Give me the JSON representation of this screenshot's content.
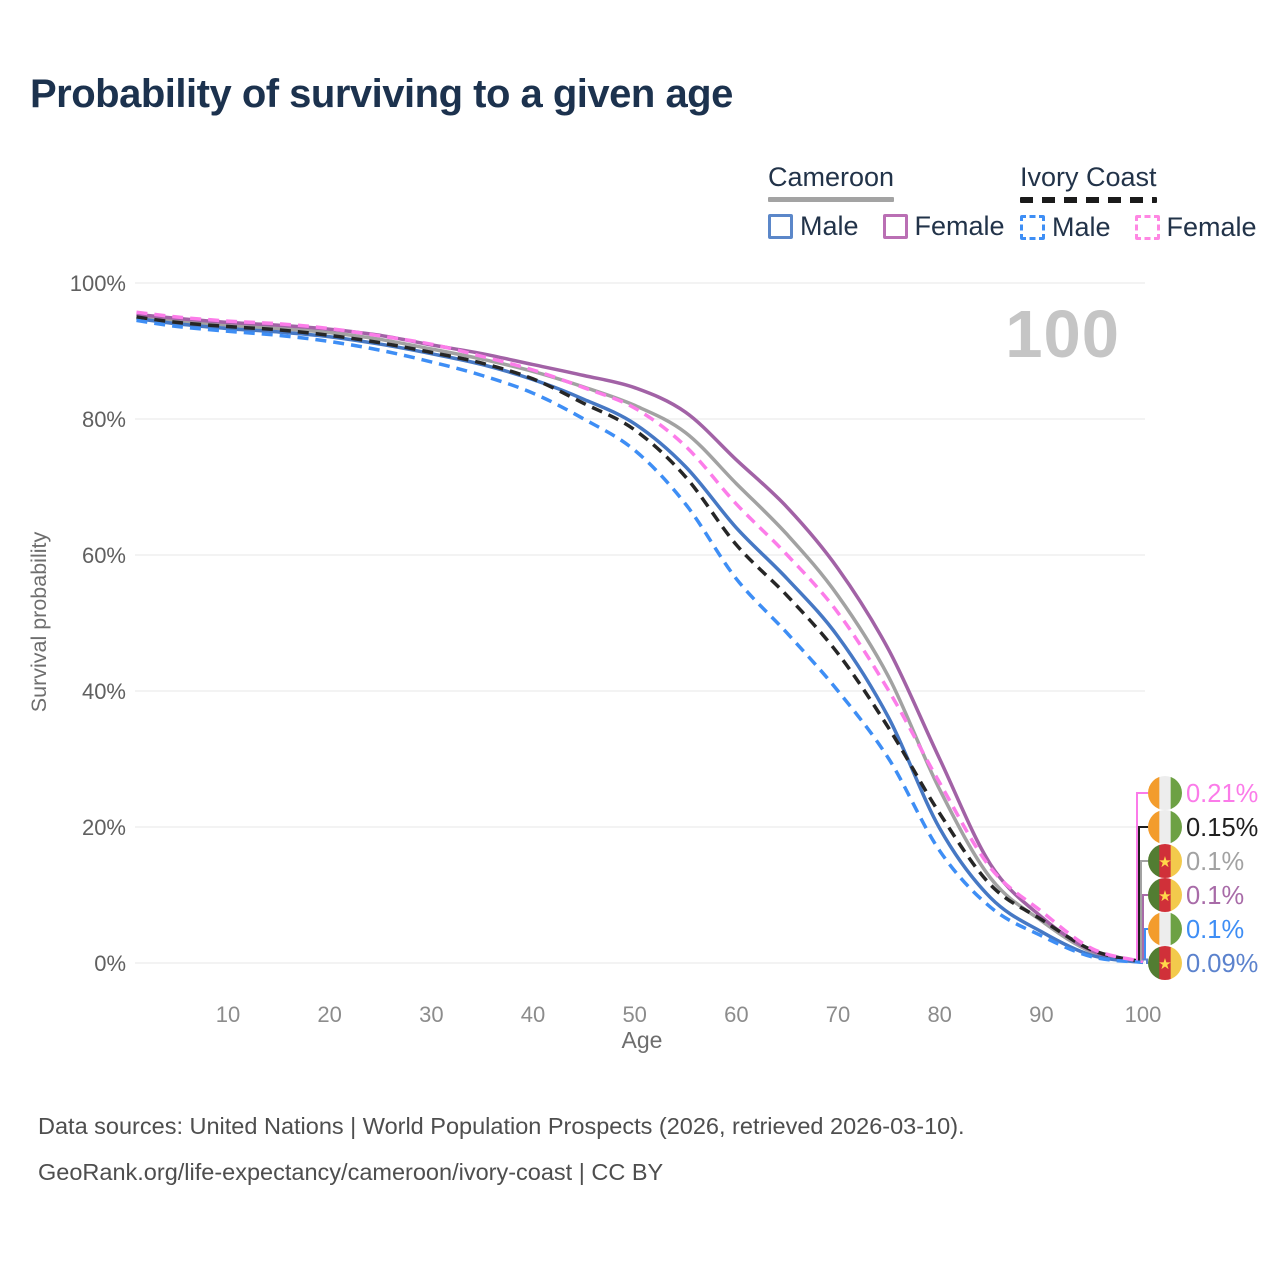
{
  "title": {
    "text": "Probability of surviving to a given age",
    "color": "#1c324e"
  },
  "legend": {
    "groups": [
      {
        "id": "cameroon",
        "label": "Cameroon",
        "line_style": "solid",
        "line_color": "#a3a3a3",
        "items": [
          {
            "id": "cameroon-male",
            "label": "Male",
            "box_color": "#5b87c9",
            "box_style": "solid"
          },
          {
            "id": "cameroon-female",
            "label": "Female",
            "box_color": "#ba6fb4",
            "box_style": "solid"
          }
        ]
      },
      {
        "id": "ivory-coast",
        "label": "Ivory Coast",
        "line_style": "dashed",
        "line_color": "#1b1b1b",
        "items": [
          {
            "id": "ivory-coast-male",
            "label": "Male",
            "box_color": "#3e8ef5",
            "box_style": "dashed"
          },
          {
            "id": "ivory-coast-female",
            "label": "Female",
            "box_color": "#ff87e3",
            "box_style": "dashed"
          }
        ]
      }
    ]
  },
  "chart_data": {
    "type": "line",
    "title": "Probability of surviving to a given age",
    "xlabel": "Age",
    "ylabel": "Survival probability",
    "watermark": "100",
    "xlim": [
      1,
      100
    ],
    "ylim": [
      0,
      100
    ],
    "grid": "horizontal",
    "legend_position": "top-right",
    "x_ticks": [
      10,
      20,
      30,
      40,
      50,
      60,
      70,
      80,
      90,
      100
    ],
    "y_ticks": [
      {
        "label": "0%",
        "value": 0
      },
      {
        "label": "20%",
        "value": 20
      },
      {
        "label": "40%",
        "value": 40
      },
      {
        "label": "60%",
        "value": 60
      },
      {
        "label": "80%",
        "value": 80
      },
      {
        "label": "100%",
        "value": 100
      }
    ],
    "ages": [
      1,
      5,
      10,
      15,
      20,
      25,
      30,
      35,
      40,
      45,
      50,
      55,
      60,
      65,
      70,
      75,
      80,
      85,
      90,
      95,
      100
    ],
    "series": [
      {
        "id": "cameroon-both",
        "name": "Cameroon (both sexes)",
        "country": "cameroon",
        "color": "#a2a2a2",
        "dash": "solid",
        "end_label": "0.1%",
        "label_color": "#a2a2a2",
        "label_slot": 2,
        "values": [
          95.1,
          94.4,
          93.8,
          93.3,
          92.7,
          91.7,
          90.3,
          88.8,
          87.0,
          84.7,
          82.0,
          78.0,
          70.5,
          63.0,
          54.0,
          42.0,
          25.5,
          12.5,
          6.2,
          1.6,
          0.1
        ]
      },
      {
        "id": "cameroon-female",
        "name": "Cameroon Female",
        "country": "cameroon",
        "color": "#a262a6",
        "dash": "solid",
        "end_label": "0.1%",
        "label_color": "#a86ba8",
        "label_slot": 3,
        "values": [
          95.4,
          94.8,
          94.2,
          93.8,
          93.2,
          92.3,
          90.9,
          89.6,
          88.0,
          86.4,
          84.6,
          81.0,
          74.0,
          67.0,
          58.0,
          46.0,
          30.0,
          14.5,
          6.8,
          1.8,
          0.1
        ]
      },
      {
        "id": "cameroon-male",
        "name": "Cameroon Male",
        "country": "cameroon",
        "color": "#4678c4",
        "dash": "solid",
        "end_label": "0.09%",
        "label_color": "#5b82cd",
        "label_slot": 5,
        "values": [
          94.8,
          94.0,
          93.3,
          92.8,
          92.1,
          91.0,
          89.6,
          88.0,
          85.8,
          82.9,
          79.3,
          73.0,
          64.0,
          56.5,
          48.0,
          36.0,
          19.8,
          9.6,
          4.6,
          1.1,
          0.09
        ]
      },
      {
        "id": "ivory-coast-both",
        "name": "Ivory Coast (both sexes)",
        "country": "ivory-coast",
        "color": "#262626",
        "dash": "dashed",
        "end_label": "0.15%",
        "label_color": "#1f1f1f",
        "label_slot": 1,
        "values": [
          95.0,
          94.2,
          93.6,
          93.1,
          92.3,
          91.2,
          89.8,
          88.2,
          85.9,
          82.3,
          78.4,
          71.5,
          61.5,
          54.0,
          45.5,
          34.5,
          22.0,
          11.5,
          6.4,
          1.9,
          0.15
        ]
      },
      {
        "id": "ivory-coast-male",
        "name": "Ivory Coast Male",
        "country": "ivory-coast",
        "color": "#3e8ef5",
        "dash": "dashed",
        "end_label": "0.1%",
        "label_color": "#3e8ef5",
        "label_slot": 4,
        "values": [
          94.5,
          93.6,
          92.9,
          92.3,
          91.4,
          90.1,
          88.4,
          86.4,
          83.8,
          80.0,
          75.4,
          67.5,
          56.5,
          48.5,
          40.0,
          30.0,
          16.5,
          8.2,
          4.0,
          0.9,
          0.1
        ]
      },
      {
        "id": "ivory-coast-female",
        "name": "Ivory Coast Female",
        "country": "ivory-coast",
        "color": "#fc7ce9",
        "dash": "dashed",
        "end_label": "0.21%",
        "label_color": "#fb7be9",
        "label_slot": 0,
        "values": [
          95.7,
          95.0,
          94.4,
          94.0,
          93.3,
          92.2,
          91.0,
          89.2,
          87.2,
          84.6,
          81.6,
          76.0,
          67.5,
          60.0,
          51.5,
          40.0,
          26.5,
          14.0,
          7.6,
          2.1,
          0.21
        ]
      }
    ]
  },
  "flags": {
    "cameroon": {
      "stripes": [
        "#527d32",
        "#d03039",
        "#f3ca4c"
      ],
      "star": "#ffd74a"
    },
    "ivory-coast": {
      "stripes": [
        "#f39c2c",
        "#ededed",
        "#6da144"
      ]
    }
  },
  "axis_colors": {
    "grid": "#ececec",
    "y_tick": "#606060",
    "x_tick": "#8c8c8c",
    "axis_title": "#6e6e6e"
  },
  "footer": {
    "line1": "Data sources: United Nations | World Population Prospects (2026, retrieved 2026-03-10).",
    "line2": "GeoRank.org/life-expectancy/cameroon/ivory-coast | CC BY"
  }
}
